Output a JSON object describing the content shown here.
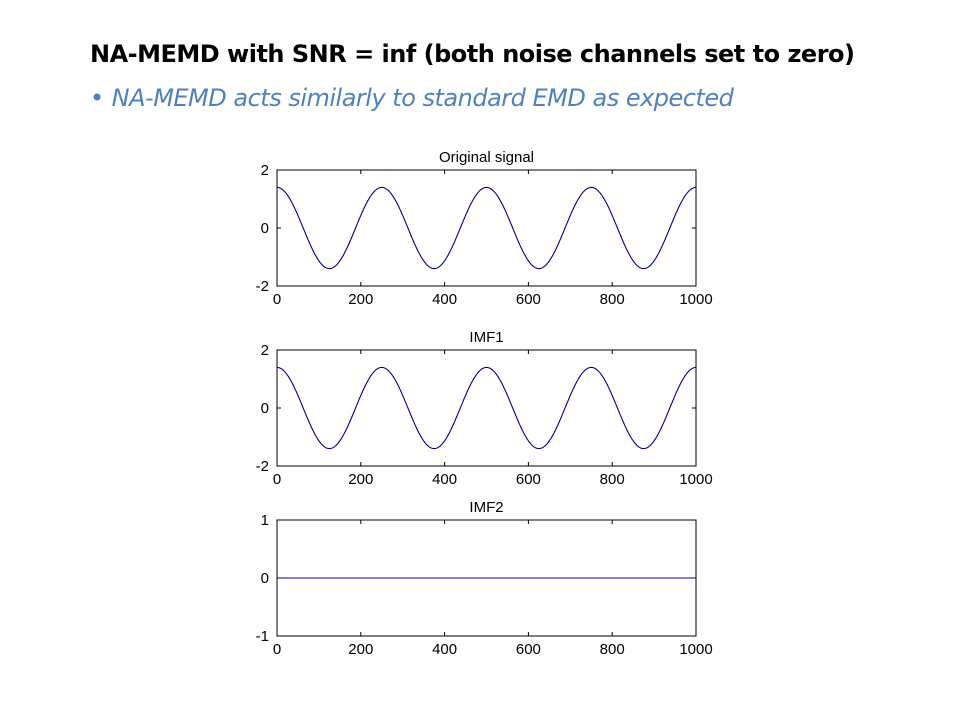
{
  "slide": {
    "title": "NA-MEMD with SNR = inf (both noise channels set to zero)",
    "bullet": "NA-MEMD acts similarly to standard EMD as expected",
    "bullet_color": "#4f81bd"
  },
  "chart_data": [
    {
      "type": "line",
      "title": "Original signal",
      "xlim": [
        0,
        1000
      ],
      "ylim": [
        -2,
        2
      ],
      "xticks": [
        "0",
        "200",
        "400",
        "600",
        "800",
        "1000"
      ],
      "yticks": [
        "2",
        "0",
        "-2"
      ],
      "series": [
        {
          "kind": "cosine",
          "amplitude": 1.4,
          "period": 250,
          "x_range": [
            0,
            1000
          ],
          "color": "#00008b"
        }
      ]
    },
    {
      "type": "line",
      "title": "IMF1",
      "xlim": [
        0,
        1000
      ],
      "ylim": [
        -2,
        2
      ],
      "xticks": [
        "0",
        "200",
        "400",
        "600",
        "800",
        "1000"
      ],
      "yticks": [
        "2",
        "0",
        "-2"
      ],
      "series": [
        {
          "kind": "cosine",
          "amplitude": 1.4,
          "period": 250,
          "x_range": [
            0,
            1000
          ],
          "color": "#00008b"
        }
      ]
    },
    {
      "type": "line",
      "title": "IMF2",
      "xlim": [
        0,
        1000
      ],
      "ylim": [
        -1,
        1
      ],
      "xticks": [
        "0",
        "200",
        "400",
        "600",
        "800",
        "1000"
      ],
      "yticks": [
        "1",
        "0",
        "-1"
      ],
      "series": [
        {
          "kind": "constant",
          "value": 0,
          "x_range": [
            0,
            1000
          ],
          "color": "#00008b"
        }
      ]
    }
  ]
}
